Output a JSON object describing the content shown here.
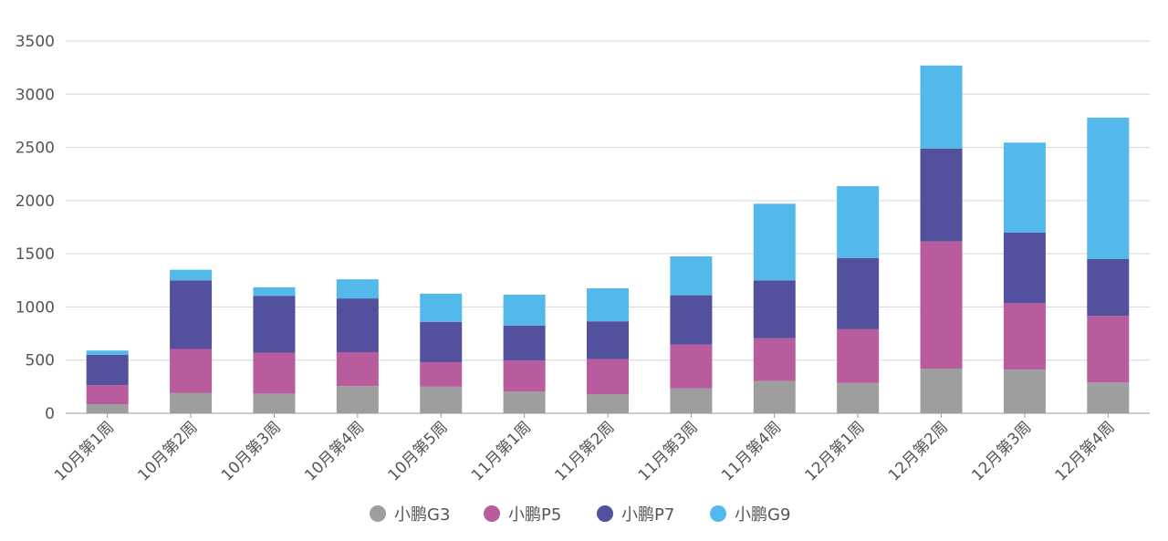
{
  "chart_data": {
    "type": "bar",
    "stacked": true,
    "categories": [
      "10月第1周",
      "10月第2周",
      "10月第3周",
      "10月第4周",
      "10月第5周",
      "11月第1周",
      "11月第2周",
      "11月第3周",
      "11月第4周",
      "12月第1周",
      "12月第2周",
      "12月第3周",
      "12月第4周"
    ],
    "series": [
      {
        "name": "小鹏G3",
        "color": "#9e9e9e",
        "values": [
          85,
          190,
          185,
          255,
          250,
          205,
          180,
          235,
          305,
          285,
          420,
          410,
          290
        ]
      },
      {
        "name": "小鹏P5",
        "color": "#b85c9e",
        "values": [
          180,
          415,
          385,
          320,
          230,
          290,
          330,
          410,
          400,
          505,
          1195,
          625,
          625
        ]
      },
      {
        "name": "小鹏P7",
        "color": "#53509d",
        "values": [
          285,
          645,
          535,
          505,
          380,
          330,
          355,
          465,
          545,
          670,
          875,
          665,
          535
        ]
      },
      {
        "name": "小鹏G9",
        "color": "#52b9ea",
        "values": [
          40,
          100,
          80,
          180,
          265,
          290,
          310,
          365,
          720,
          675,
          780,
          845,
          1330
        ]
      }
    ],
    "ylim": [
      0,
      3500
    ],
    "yticks": [
      0,
      500,
      1000,
      1500,
      2000,
      2500,
      3000,
      3500
    ],
    "grid": true,
    "legend_position": "bottom"
  }
}
